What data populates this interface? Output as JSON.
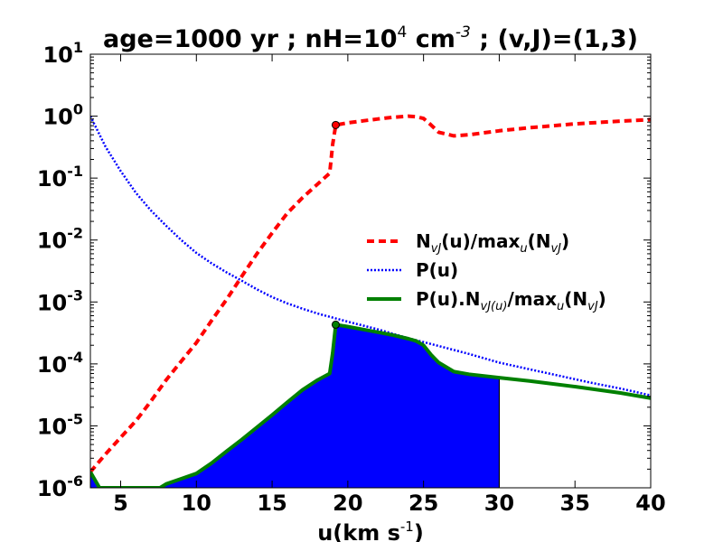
{
  "chart_data": {
    "type": "line",
    "title": {
      "prefix": "age=1000 yr ; nH=10",
      "sup1": "4",
      "mid": " cm",
      "sup2": "-3",
      "suffix": " ; (v,J)=(1,3)"
    },
    "xlabel": {
      "main": "u(km s",
      "sup": "-1",
      "end": ")"
    },
    "ylabel": "",
    "xlim": [
      3,
      40
    ],
    "ylim": [
      1e-06,
      10
    ],
    "yscale": "log",
    "grid": false,
    "legend_position": "center-right",
    "x_ticks": [
      {
        "value": 5,
        "label": "5"
      },
      {
        "value": 10,
        "label": "10"
      },
      {
        "value": 15,
        "label": "15"
      },
      {
        "value": 20,
        "label": "20"
      },
      {
        "value": 25,
        "label": "25"
      },
      {
        "value": 30,
        "label": "30"
      },
      {
        "value": 35,
        "label": "35"
      },
      {
        "value": 40,
        "label": "40"
      }
    ],
    "y_ticks": [
      {
        "value": 1e-06,
        "base": "10",
        "exp": "-6"
      },
      {
        "value": 1e-05,
        "base": "10",
        "exp": "-5"
      },
      {
        "value": 0.0001,
        "base": "10",
        "exp": "-4"
      },
      {
        "value": 0.001,
        "base": "10",
        "exp": "-3"
      },
      {
        "value": 0.01,
        "base": "10",
        "exp": "-2"
      },
      {
        "value": 0.1,
        "base": "10",
        "exp": "-1"
      },
      {
        "value": 1,
        "base": "10",
        "exp": "0"
      },
      {
        "value": 10,
        "base": "10",
        "exp": "1"
      }
    ],
    "series": [
      {
        "key": "nvj",
        "legend": {
          "a": "N",
          "a_sub": "vJ",
          "b": "(u)/max",
          "b_sub": "u",
          "c": "(N",
          "c_sub": "vJ",
          "d": ")"
        },
        "color": "#ff0000",
        "style": "dashed",
        "x": [
          3,
          4,
          5,
          6,
          7,
          8,
          9,
          10,
          11,
          12,
          13,
          14,
          15,
          16,
          17,
          18,
          18.8,
          19.0,
          19.2,
          20,
          21,
          22,
          23,
          24,
          24.5,
          25,
          25.5,
          26,
          27,
          28,
          30,
          32,
          35,
          38,
          40
        ],
        "y": [
          1.8e-06,
          3.5e-06,
          6.5e-06,
          1.2e-05,
          2.5e-05,
          5.5e-05,
          0.00011,
          0.00022,
          0.0005,
          0.0011,
          0.0026,
          0.006,
          0.013,
          0.027,
          0.048,
          0.08,
          0.12,
          0.35,
          0.72,
          0.78,
          0.84,
          0.9,
          0.96,
          1.0,
          0.98,
          0.92,
          0.72,
          0.55,
          0.48,
          0.5,
          0.58,
          0.65,
          0.75,
          0.83,
          0.88
        ]
      },
      {
        "key": "pu",
        "legend": {
          "a": "P(u)"
        },
        "color": "#0000ff",
        "style": "dotted",
        "x": [
          3,
          4,
          5,
          6,
          7,
          8,
          9,
          10,
          11,
          12,
          13,
          14,
          15,
          16,
          17,
          18,
          19,
          20,
          22,
          24,
          26,
          28,
          30,
          32,
          34,
          36,
          38,
          40
        ],
        "y": [
          1.0,
          0.32,
          0.13,
          0.058,
          0.03,
          0.017,
          0.01,
          0.0062,
          0.0042,
          0.003,
          0.0022,
          0.0016,
          0.0012,
          0.00095,
          0.00078,
          0.00065,
          0.00056,
          0.00048,
          0.00036,
          0.00026,
          0.000195,
          0.000145,
          0.000105,
          8.2e-05,
          6.4e-05,
          5e-05,
          4e-05,
          3.1e-05
        ]
      },
      {
        "key": "prod",
        "legend": {
          "a": "P(u).N",
          "a_sub": "vJ(u)",
          "b": "/max",
          "b_sub": "u",
          "c": "(N",
          "c_sub": "vJ",
          "d": ")"
        },
        "color": "#008000",
        "style": "solid",
        "x": [
          3,
          3.6,
          7.6,
          8,
          9,
          10,
          11,
          12,
          13,
          14,
          15,
          16,
          17,
          18,
          18.8,
          19.0,
          19.2,
          20,
          21,
          22,
          23,
          24,
          24.5,
          25,
          25.5,
          26,
          27,
          28,
          30,
          32,
          35,
          38,
          40
        ],
        "y": [
          1.8e-06,
          1e-06,
          1e-06,
          1.15e-06,
          1.4e-06,
          1.7e-06,
          2.5e-06,
          3.9e-06,
          6e-06,
          9.5e-06,
          1.5e-05,
          2.4e-05,
          3.8e-05,
          5.5e-05,
          7e-05,
          0.00015,
          0.00043,
          0.0004,
          0.00036,
          0.000325,
          0.00029,
          0.000255,
          0.000235,
          0.0002,
          0.00014,
          0.000105,
          7.5e-05,
          6.8e-05,
          6e-05,
          5.3e-05,
          4.3e-05,
          3.4e-05,
          2.8e-05
        ]
      }
    ],
    "fill": {
      "color": "#0000ff",
      "from_x": 3,
      "to_x": 30
    },
    "markers": [
      {
        "x": 19.2,
        "y": 0.72,
        "color": "#ff0000"
      },
      {
        "x": 19.2,
        "y": 0.00043,
        "color": "#008000"
      }
    ]
  }
}
